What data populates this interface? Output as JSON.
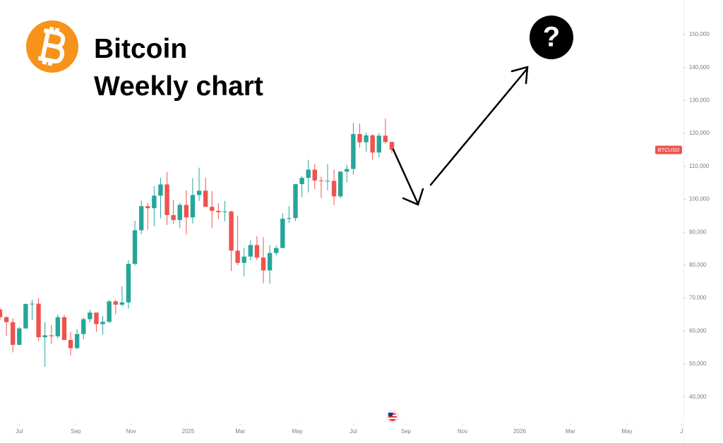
{
  "chart_data": {
    "type": "candlestick",
    "title": "Bitcoin",
    "subtitle": "Weekly chart",
    "symbol": "BTCUSD",
    "annotation": "?",
    "up_color": "#26a69a",
    "down_color": "#ef5350",
    "x": [
      -3,
      -2,
      -1,
      0,
      1,
      2,
      3,
      4,
      5,
      6,
      7,
      8,
      9,
      10,
      11,
      12,
      13,
      14,
      15,
      16,
      17,
      18,
      19,
      20,
      21,
      22,
      23,
      24,
      25,
      26,
      27,
      28,
      29,
      30,
      31,
      32,
      33,
      34,
      35,
      36,
      37,
      38,
      39,
      40,
      41,
      42,
      43,
      44,
      45,
      46,
      47,
      48,
      49,
      50,
      51,
      52,
      53,
      54,
      55,
      56,
      57,
      58
    ],
    "open": [
      66500,
      64200,
      62700,
      55800,
      60800,
      68200,
      68300,
      58100,
      58700,
      58400,
      64200,
      57300,
      54800,
      59100,
      63600,
      65600,
      62100,
      62800,
      69000,
      68000,
      68700,
      80400,
      90600,
      97900,
      97300,
      101100,
      104500,
      95200,
      93700,
      98300,
      94500,
      101300,
      102600,
      97700,
      96500,
      96100,
      96300,
      84400,
      80700,
      82600,
      86100,
      82300,
      78400,
      83700,
      85200,
      94100,
      94300,
      104600,
      106500,
      109000,
      105700,
      105600,
      105600,
      100900,
      108400,
      109200,
      119800,
      117300,
      119400,
      114200,
      119300,
      117400
    ],
    "high": [
      67000,
      64500,
      63800,
      61300,
      68400,
      69400,
      70000,
      62700,
      61800,
      65000,
      64900,
      59800,
      60600,
      64100,
      66500,
      65600,
      64500,
      69400,
      69500,
      73600,
      81500,
      93500,
      99600,
      98900,
      104000,
      106500,
      108300,
      99900,
      99000,
      102700,
      106400,
      109600,
      106500,
      102500,
      98800,
      99500,
      96500,
      95000,
      85300,
      87500,
      88800,
      88500,
      86100,
      86000,
      95800,
      97900,
      104300,
      107100,
      112000,
      110700,
      106800,
      110600,
      109000,
      108500,
      110500,
      123200,
      123000,
      120200,
      119800,
      120100,
      124500,
      117600
    ],
    "low": [
      63400,
      58500,
      53500,
      55700,
      60600,
      63400,
      57100,
      49100,
      56100,
      57800,
      57200,
      52600,
      54500,
      57500,
      62600,
      59800,
      58900,
      62400,
      65100,
      67500,
      66800,
      79900,
      89400,
      90800,
      91800,
      94200,
      92200,
      92500,
      91300,
      89300,
      92600,
      99500,
      97800,
      91200,
      94100,
      93300,
      78200,
      80000,
      76600,
      81500,
      81500,
      74500,
      74400,
      83000,
      85100,
      92800,
      93400,
      100700,
      102100,
      103100,
      100400,
      102700,
      98200,
      100300,
      105100,
      107500,
      115700,
      114500,
      112000,
      112700,
      116800,
      114000
    ],
    "close": [
      64200,
      62700,
      55800,
      60800,
      68200,
      68300,
      58100,
      58700,
      58400,
      64200,
      57300,
      54800,
      59100,
      63600,
      65600,
      62100,
      62800,
      69000,
      68000,
      68700,
      80400,
      90600,
      97900,
      97300,
      101100,
      104500,
      95200,
      93700,
      98300,
      94500,
      101300,
      102600,
      97700,
      96500,
      96100,
      96300,
      84400,
      80700,
      82600,
      86100,
      82300,
      78400,
      83700,
      85200,
      94100,
      94300,
      104600,
      106500,
      109000,
      105700,
      105600,
      105600,
      100900,
      108400,
      109200,
      119800,
      117300,
      119400,
      114200,
      119300,
      117400,
      115000
    ],
    "xlim": [
      -3,
      103.4
    ],
    "xticks": [
      {
        "value": 0,
        "label": "Jul"
      },
      {
        "value": 8.8,
        "label": "Sep"
      },
      {
        "value": 17.4,
        "label": "Nov"
      },
      {
        "value": 26.3,
        "label": "2025"
      },
      {
        "value": 34.4,
        "label": "Mar"
      },
      {
        "value": 43.3,
        "label": "May"
      },
      {
        "value": 52,
        "label": "Jul"
      },
      {
        "value": 60.2,
        "label": "Sep"
      },
      {
        "value": 69,
        "label": "Nov"
      },
      {
        "value": 77.9,
        "label": "2026"
      },
      {
        "value": 85.8,
        "label": "Mar"
      },
      {
        "value": 94.6,
        "label": "May"
      },
      {
        "value": 103.1,
        "label": "J"
      }
    ],
    "ylim": [
      32000,
      160500
    ],
    "yticks": [
      {
        "value": 40000,
        "label": "40,000"
      },
      {
        "value": 50000,
        "label": "50,000"
      },
      {
        "value": 60000,
        "label": "60,000"
      },
      {
        "value": 70000,
        "label": "70,000"
      },
      {
        "value": 80000,
        "label": "80,000"
      },
      {
        "value": 90000,
        "label": "90,000"
      },
      {
        "value": 100000,
        "label": "100,000"
      },
      {
        "value": 110000,
        "label": "110,000"
      },
      {
        "value": 120000,
        "label": "120,000"
      },
      {
        "value": 130000,
        "label": "130,000"
      },
      {
        "value": 140000,
        "label": "140,000"
      },
      {
        "value": 150000,
        "label": "150,000"
      }
    ]
  }
}
